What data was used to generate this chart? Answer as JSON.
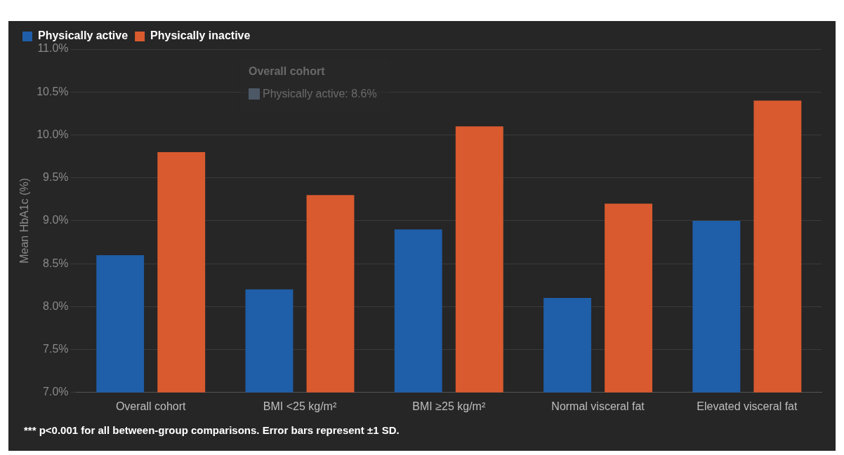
{
  "chart_data": {
    "type": "bar",
    "ylabel": "Mean HbA1c (%)",
    "categories": [
      "Overall cohort",
      "BMI <25 kg/m²",
      "BMI ≥25 kg/m²",
      "Normal visceral fat",
      "Elevated visceral fat"
    ],
    "series": [
      {
        "name": "Physically active",
        "color": "#1f5ea8",
        "values": [
          8.6,
          8.2,
          8.9,
          8.1,
          9.0
        ]
      },
      {
        "name": "Physically inactive",
        "color": "#d95a2f",
        "values": [
          9.8,
          9.3,
          10.1,
          9.2,
          10.4
        ]
      }
    ],
    "ylim": [
      7,
      11
    ],
    "yticks": [
      {
        "value": 7,
        "label": "7.0%"
      },
      {
        "value": 7.5,
        "label": "7.5%"
      },
      {
        "value": 8,
        "label": "8.0%"
      },
      {
        "value": 8.5,
        "label": "8.5%"
      },
      {
        "value": 9,
        "label": "9.0%"
      },
      {
        "value": 9.5,
        "label": "9.5%"
      },
      {
        "value": 10,
        "label": "10.0%"
      },
      {
        "value": 10.5,
        "label": "10.5%"
      },
      {
        "value": 11,
        "label": "11.0%"
      }
    ],
    "grid": "y",
    "legend": "top left",
    "annotations": [
      "Overall cohort",
      "Physically active: 8.6%",
      "*** p<0.001 for all between-group comparisons. Error bars represent ±1 SD."
    ]
  }
}
